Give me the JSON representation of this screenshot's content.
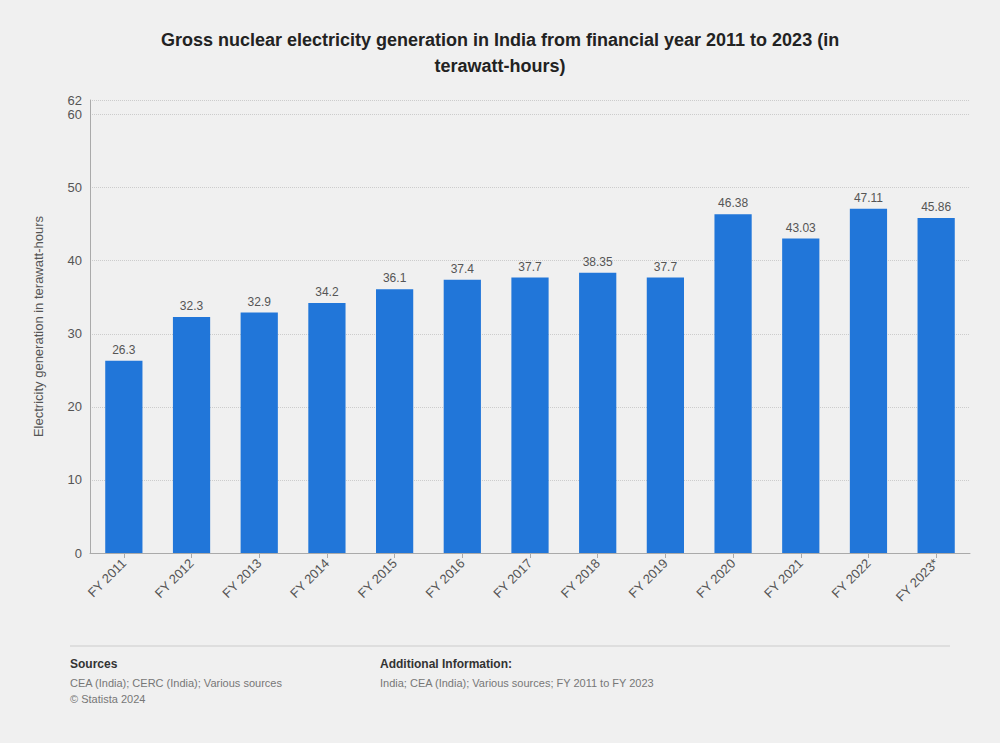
{
  "chart_data": {
    "type": "bar",
    "title": "Gross nuclear electricity generation in India from financial year 2011 to 2023 (in\nterawatt-hours)",
    "categories": [
      "FY 2011",
      "FY 2012",
      "FY 2013",
      "FY 2014",
      "FY 2015",
      "FY 2016",
      "FY 2017",
      "FY 2018",
      "FY 2019",
      "FY 2020",
      "FY 2021",
      "FY 2022",
      "FY 2023*"
    ],
    "values": [
      26.3,
      32.3,
      32.9,
      34.2,
      36.1,
      37.4,
      37.7,
      38.35,
      37.7,
      46.38,
      43.03,
      47.11,
      45.86
    ],
    "color": "#2176d9",
    "ylabel": "Electricity generation in terawatt-hours",
    "ylim": [
      0,
      62
    ],
    "yticks": [
      0,
      10,
      20,
      30,
      40,
      50,
      60
    ],
    "grid": true,
    "data_labels": true,
    "annotations": [
      "Sources",
      "CEA (India); CERC (India); Various sources\n© Statista 2024",
      "Additional Information:",
      "India; CEA (India); Various sources; FY 2011 to FY 2023"
    ]
  }
}
